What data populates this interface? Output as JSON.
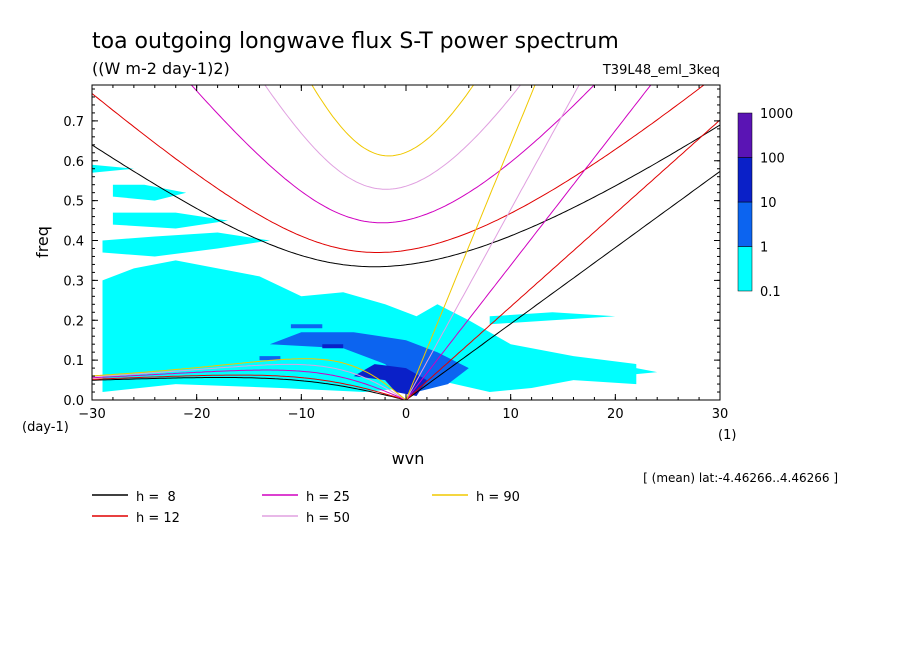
{
  "chart_data": {
    "type": "heatmap",
    "title": "toa outgoing longwave flux S-T power spectrum",
    "subtitle": "((W m-2 day-1)2)",
    "dataset": "T39L48_eml_3keq",
    "xlabel": "wvn",
    "ylabel": "freq",
    "x_unit": "(1)",
    "y_unit": "(day-1)",
    "xlim": [
      -30,
      30
    ],
    "ylim": [
      0,
      0.79
    ],
    "x_ticks": [
      "-30",
      "-20",
      "-10",
      "0",
      "10",
      "20",
      "30"
    ],
    "y_ticks": [
      "0.0",
      "0.1",
      "0.2",
      "0.3",
      "0.4",
      "0.5",
      "0.6",
      "0.7"
    ],
    "region_note": "[ (mean) lat:-4.46266..4.46266 ]",
    "colorbar": {
      "levels": [
        "0.1",
        "1",
        "10",
        "100",
        "1000"
      ],
      "colors": [
        "#00ffff",
        "#0c64f0",
        "#0a20c8",
        "#5a14b4"
      ]
    },
    "contours": [
      {
        "level": 1,
        "color": "#00ffff",
        "polygons": [
          [
            [
              -29,
              0.02
            ],
            [
              -22,
              0.04
            ],
            [
              -12,
              0.03
            ],
            [
              -4,
              0.02
            ],
            [
              0,
              0.03
            ],
            [
              3,
              0.05
            ],
            [
              8,
              0.02
            ],
            [
              12,
              0.03
            ],
            [
              16,
              0.05
            ],
            [
              22,
              0.04
            ],
            [
              22,
              0.09
            ],
            [
              16,
              0.11
            ],
            [
              10,
              0.14
            ],
            [
              6,
              0.2
            ],
            [
              3,
              0.24
            ],
            [
              1,
              0.21
            ],
            [
              -2,
              0.24
            ],
            [
              -6,
              0.27
            ],
            [
              -10,
              0.26
            ],
            [
              -14,
              0.31
            ],
            [
              -18,
              0.33
            ],
            [
              -22,
              0.35
            ],
            [
              -26,
              0.33
            ],
            [
              -29,
              0.3
            ]
          ],
          [
            [
              -29,
              0.37
            ],
            [
              -24,
              0.36
            ],
            [
              -18,
              0.38
            ],
            [
              -13,
              0.4
            ],
            [
              -18,
              0.42
            ],
            [
              -24,
              0.41
            ],
            [
              -29,
              0.4
            ]
          ],
          [
            [
              -28,
              0.44
            ],
            [
              -22,
              0.43
            ],
            [
              -17,
              0.45
            ],
            [
              -22,
              0.47
            ],
            [
              -28,
              0.47
            ]
          ],
          [
            [
              -28,
              0.51
            ],
            [
              -24,
              0.5
            ],
            [
              -21,
              0.52
            ],
            [
              -25,
              0.54
            ],
            [
              -28,
              0.54
            ]
          ],
          [
            [
              -30,
              0.57
            ],
            [
              -26,
              0.58
            ],
            [
              -30,
              0.59
            ]
          ],
          [
            [
              8,
              0.19
            ],
            [
              14,
              0.2
            ],
            [
              20,
              0.21
            ],
            [
              14,
              0.22
            ],
            [
              8,
              0.21
            ]
          ],
          [
            [
              20,
              0.06
            ],
            [
              24,
              0.07
            ],
            [
              22,
              0.08
            ]
          ]
        ]
      },
      {
        "level": 10,
        "color": "#0c64f0",
        "polygons": [
          [
            [
              -13,
              0.14
            ],
            [
              -6,
              0.13
            ],
            [
              -2,
              0.09
            ],
            [
              1,
              0.02
            ],
            [
              4,
              0.04
            ],
            [
              6,
              0.08
            ],
            [
              3,
              0.12
            ],
            [
              0,
              0.15
            ],
            [
              -5,
              0.17
            ],
            [
              -10,
              0.17
            ]
          ],
          [
            [
              -11,
              0.18
            ],
            [
              -8,
              0.18
            ],
            [
              -8,
              0.19
            ],
            [
              -11,
              0.19
            ]
          ],
          [
            [
              -14,
              0.1
            ],
            [
              -12,
              0.1
            ],
            [
              -12,
              0.11
            ],
            [
              -14,
              0.11
            ]
          ]
        ]
      },
      {
        "level": 100,
        "color": "#0a20c8",
        "polygons": [
          [
            [
              -5,
              0.06
            ],
            [
              -2,
              0.05
            ],
            [
              -1,
              0.02
            ],
            [
              1,
              0.01
            ],
            [
              2,
              0.05
            ],
            [
              0,
              0.08
            ],
            [
              -3,
              0.09
            ]
          ],
          [
            [
              -8,
              0.13
            ],
            [
              -6,
              0.13
            ],
            [
              -6,
              0.14
            ],
            [
              -8,
              0.14
            ]
          ]
        ]
      }
    ],
    "series": [
      {
        "name": "h =  8",
        "h": 8,
        "color": "#000000"
      },
      {
        "name": "h = 12",
        "h": 12,
        "color": "#e00000"
      },
      {
        "name": "h = 25",
        "h": 25,
        "color": "#d000c0"
      },
      {
        "name": "h = 50",
        "h": 50,
        "color": "#e0a0e0"
      },
      {
        "name": "h = 90",
        "h": 90,
        "color": "#f0c800"
      }
    ]
  }
}
